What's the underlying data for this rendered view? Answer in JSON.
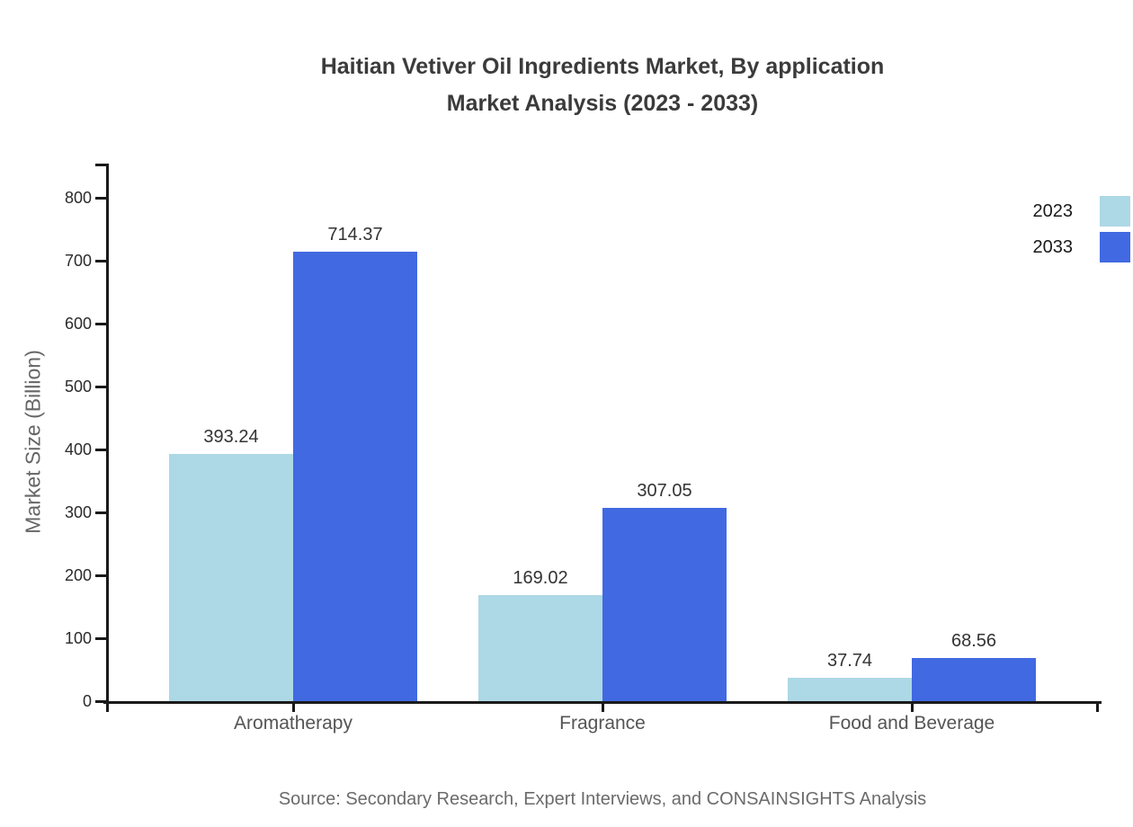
{
  "chart_data": {
    "type": "bar",
    "title_line1": "Haitian Vetiver Oil Ingredients Market, By application",
    "title_line2": "Market Analysis (2023 - 2033)",
    "ylabel": "Market Size (Billion)",
    "xlabel": "",
    "categories": [
      "Aromatherapy",
      "Fragrance",
      "Food and Beverage"
    ],
    "series": [
      {
        "name": "2023",
        "color": "#ADD8E6",
        "values": [
          393.24,
          169.02,
          37.74
        ]
      },
      {
        "name": "2033",
        "color": "#4169E1",
        "values": [
          714.37,
          307.05,
          68.56
        ]
      }
    ],
    "y_ticks": [
      0,
      100,
      200,
      300,
      400,
      500,
      600,
      700,
      800
    ],
    "ylim": [
      0,
      855
    ],
    "grid": false,
    "legend_position": "top-right",
    "axis_color": "#1a1a1a",
    "source_note": "Source: Secondary Research, Expert Interviews, and CONSAINSIGHTS Analysis"
  }
}
